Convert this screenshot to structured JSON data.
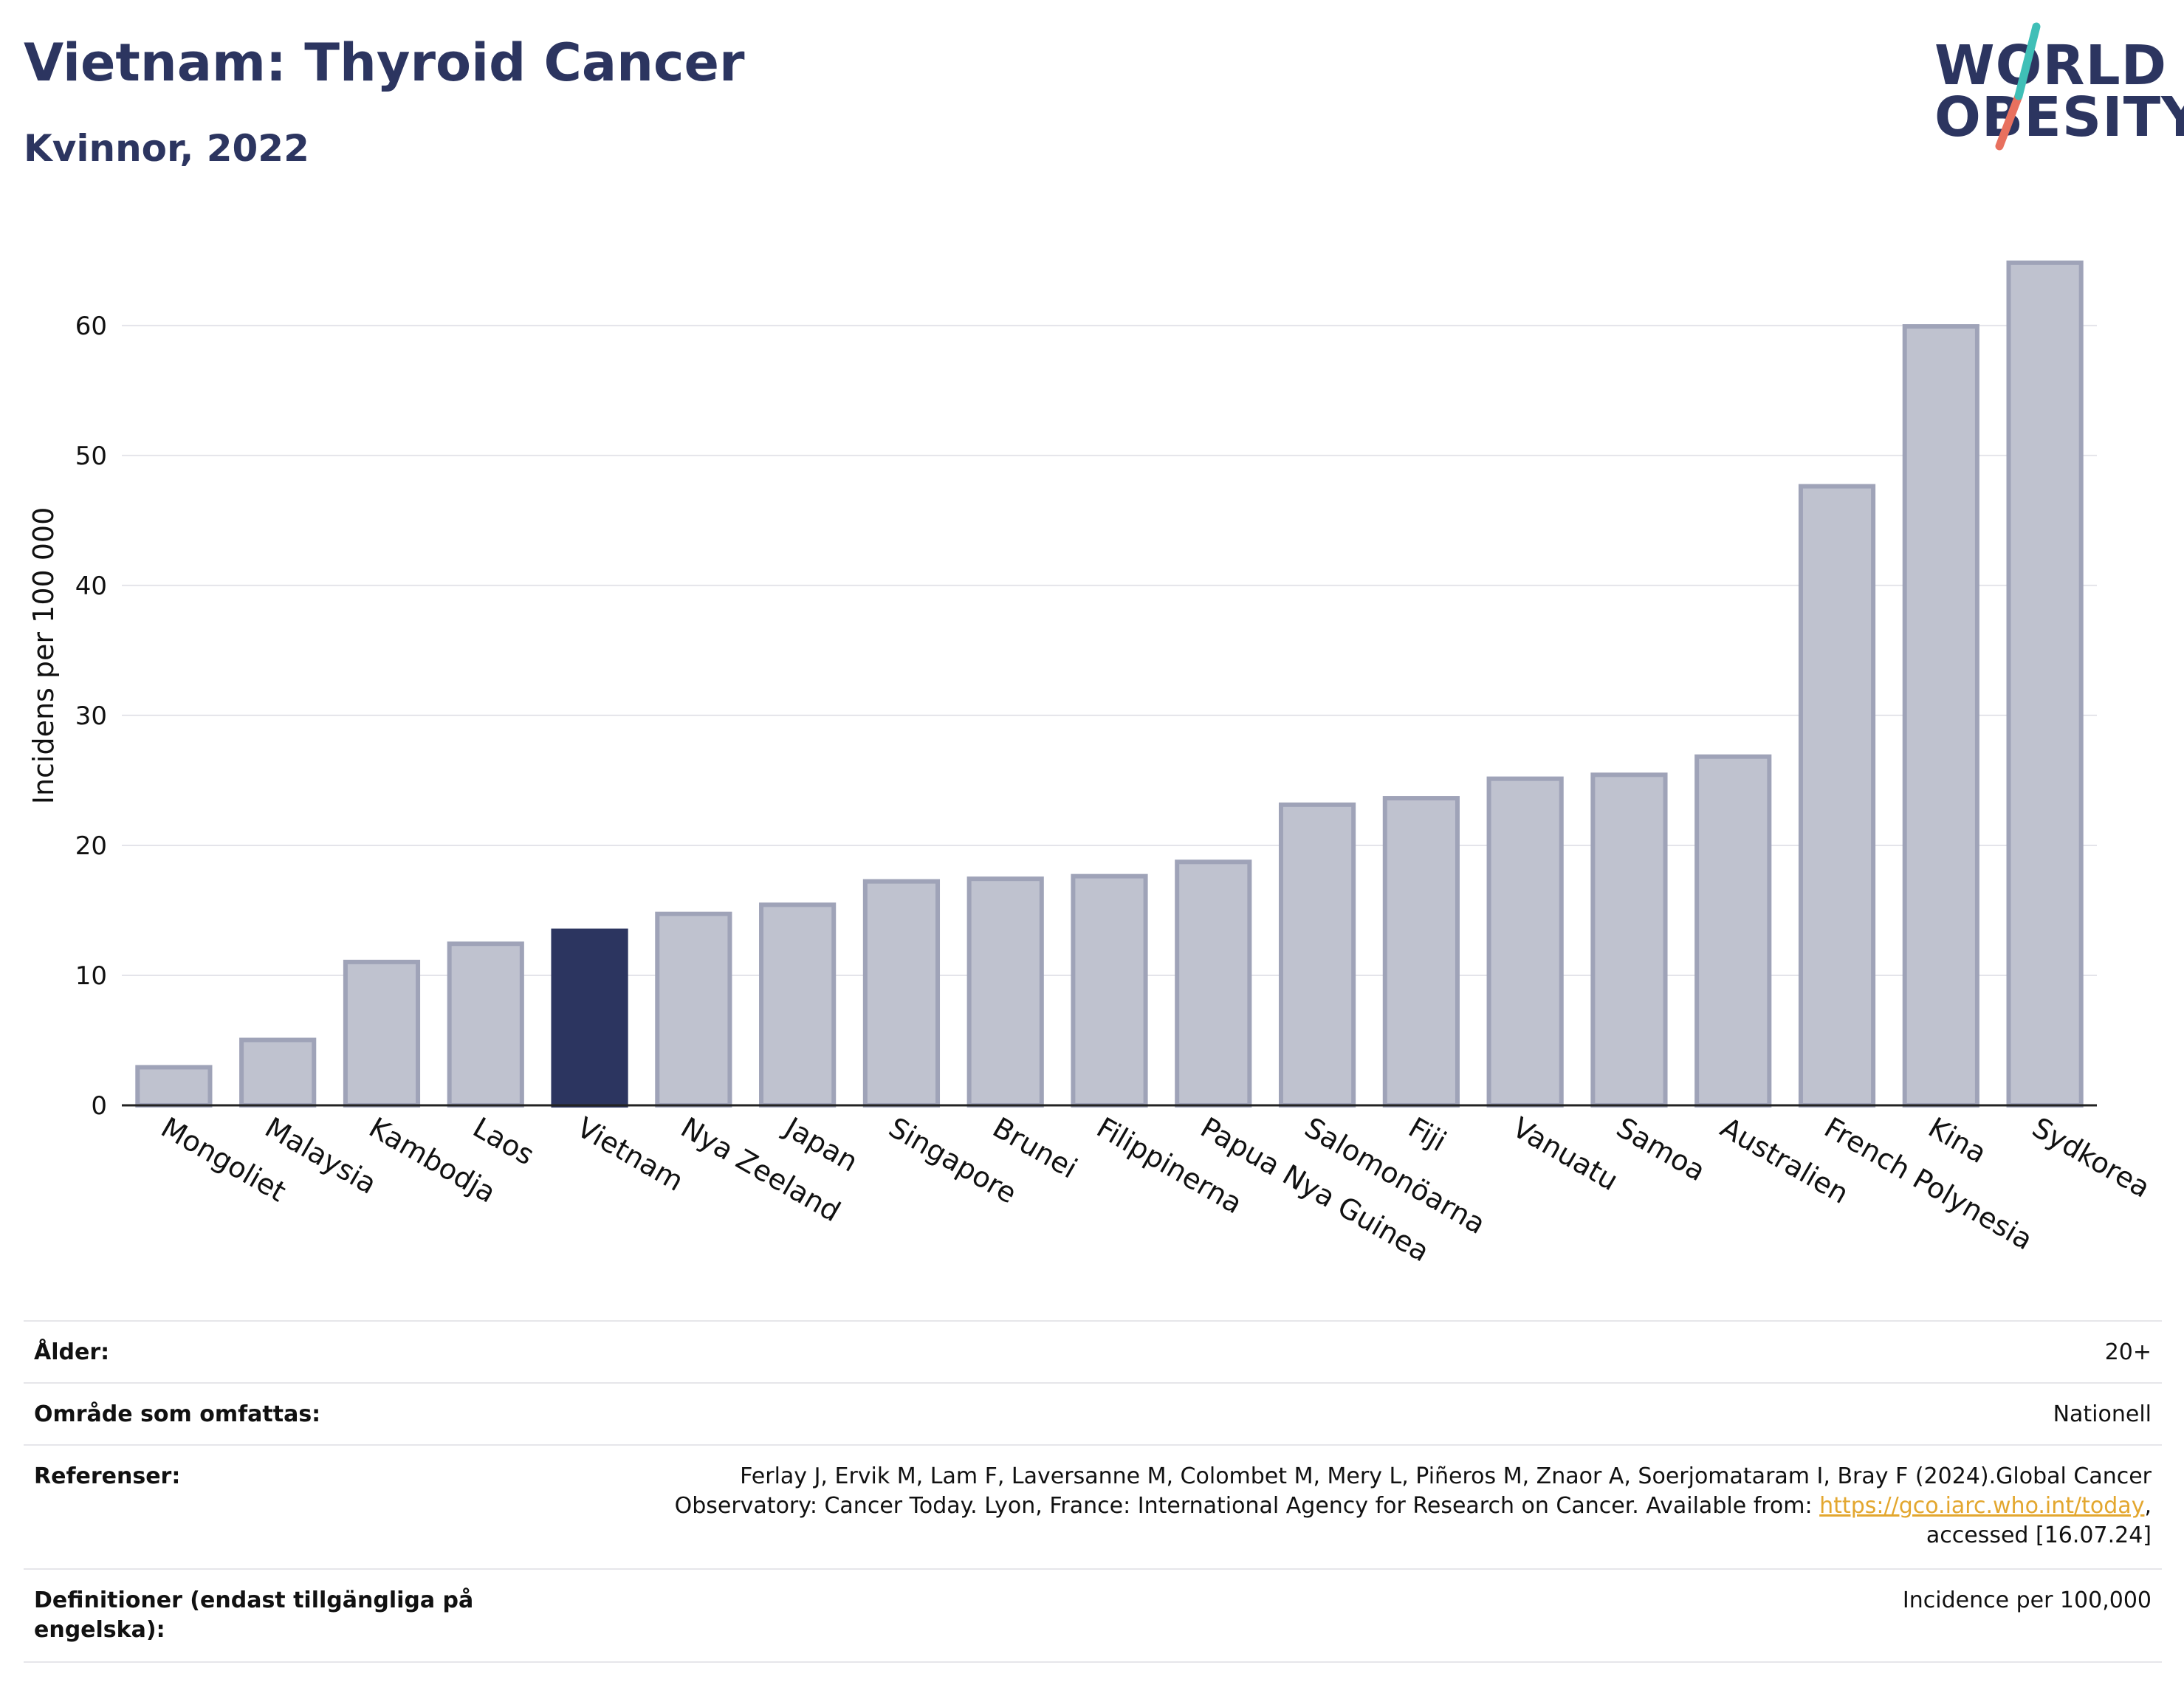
{
  "header": {
    "title": "Vietnam: Thyroid Cancer",
    "subtitle": "Kvinnor, 2022"
  },
  "logo": {
    "line1": "WORLD",
    "line2": "OBESITY"
  },
  "colors": {
    "highlight": "#2c3560",
    "bar_fill": "#bfc2cf",
    "bar_stroke": "#9fa3b8",
    "brand_teal": "#3fbfb7",
    "brand_coral": "#e8705e",
    "link": "#e3a72f"
  },
  "chart_data": {
    "type": "bar",
    "title": "",
    "xlabel": "",
    "ylabel": "Incidens per 100 000",
    "ylim": [
      0,
      68
    ],
    "yticks": [
      0,
      10,
      20,
      30,
      40,
      50,
      60
    ],
    "grid": true,
    "highlight_category": "Vietnam",
    "categories": [
      "Mongoliet",
      "Malaysia",
      "Kambodja",
      "Laos",
      "Vietnam",
      "Nya Zeeland",
      "Japan",
      "Singapore",
      "Brunei",
      "Filippinerna",
      "Papua Nya Guinea",
      "Salomonöarna",
      "Fiji",
      "Vanuatu",
      "Samoa",
      "Australien",
      "French Polynesia",
      "Kina",
      "Sydkorea"
    ],
    "values": [
      3.1,
      5.2,
      11.2,
      12.6,
      13.6,
      14.9,
      15.6,
      17.4,
      17.6,
      17.8,
      18.9,
      23.3,
      23.8,
      25.3,
      25.6,
      27.0,
      47.8,
      60.1,
      65.0
    ]
  },
  "info": {
    "age_label": "Ålder:",
    "age_value": "20+",
    "area_label": "Område som omfattas:",
    "area_value": "Nationell",
    "ref_label": "Referenser:",
    "ref_text_1": "Ferlay J, Ervik M, Lam F, Laversanne M, Colombet M, Mery L, Piñeros M, Znaor A, Soerjomataram I, Bray F (2024).Global Cancer Observatory: Cancer Today. Lyon, France: International Agency for Research on Cancer. Available from: ",
    "ref_link": "https://gco.iarc.who.int/today",
    "ref_text_2": ", accessed [16.07.24]",
    "def_label": "Definitioner (endast tillgängliga på engelska):",
    "def_value": "Incidence per 100,000"
  }
}
